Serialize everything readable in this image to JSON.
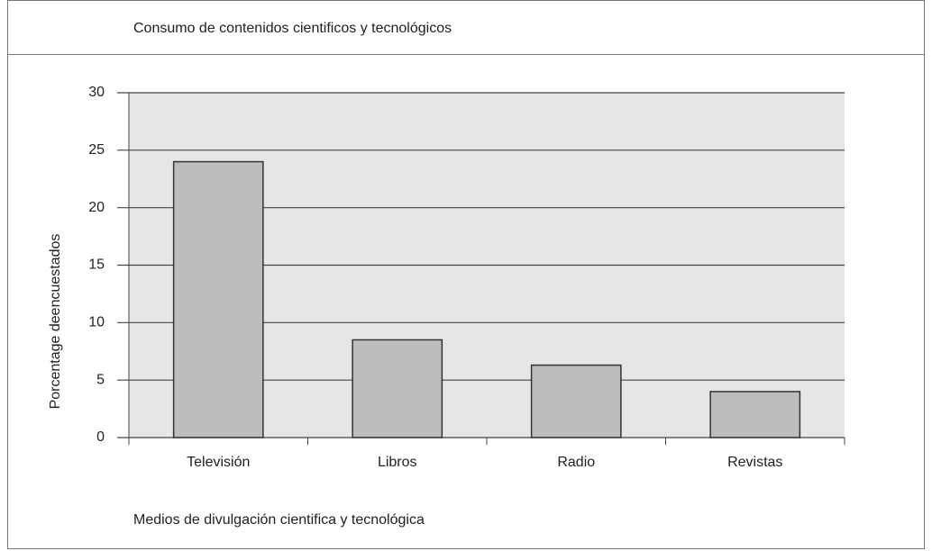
{
  "chart_data": {
    "type": "bar",
    "title": "Consumo de contenidos cientificos y tecnológicos",
    "x_label": "Medios de divulgación cientifica y tecnológica",
    "y_label": "Porcentage deencuestados",
    "categories": [
      "Televisión",
      "Libros",
      "Radio",
      "Revistas"
    ],
    "values": [
      24,
      8.5,
      6.3,
      4
    ],
    "color": "#bdbdbd",
    "ylim": [
      0,
      30
    ],
    "yticks": [
      0,
      5,
      10,
      15,
      20,
      25,
      30
    ],
    "grid": true
  }
}
